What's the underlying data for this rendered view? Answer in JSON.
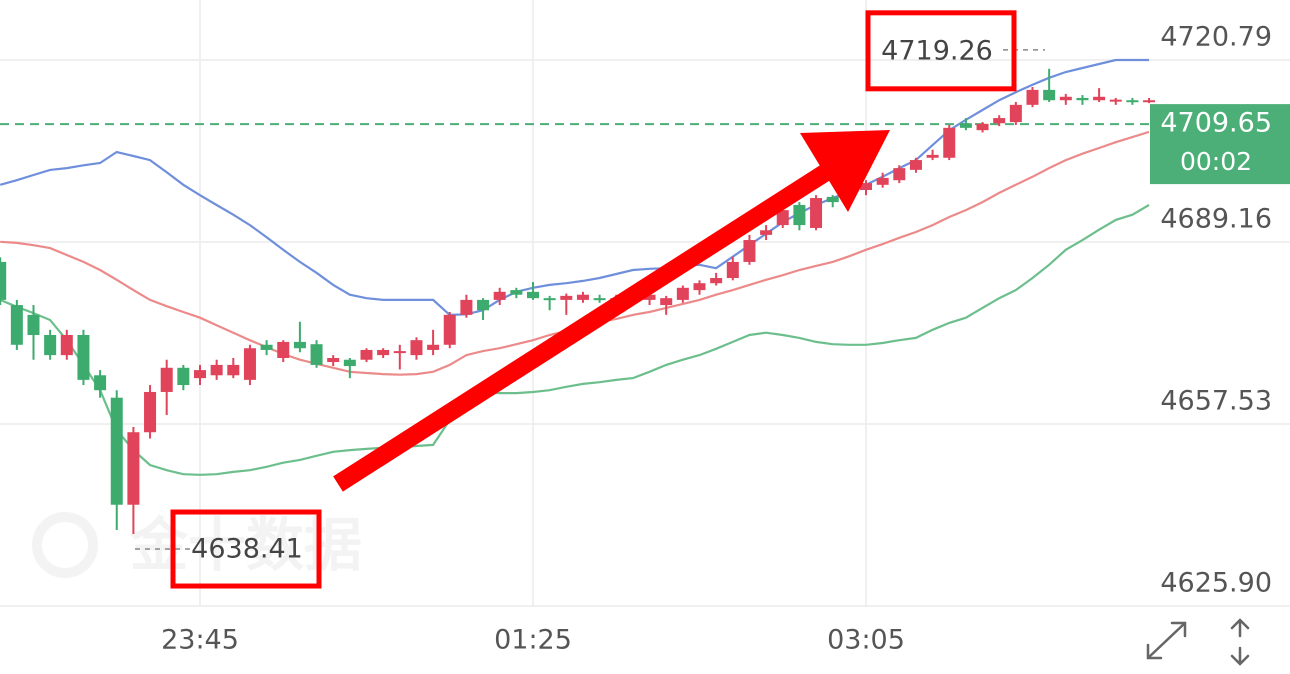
{
  "chart_data": {
    "type": "candlestick",
    "watermark": "金十数据",
    "categories": [
      null,
      null,
      null,
      null,
      null,
      null,
      null,
      null,
      null,
      null,
      null,
      null,
      "23:45",
      null,
      null,
      null,
      null,
      null,
      null,
      null,
      null,
      null,
      null,
      null,
      null,
      null,
      null,
      null,
      null,
      null,
      null,
      null,
      "01:25",
      null,
      null,
      null,
      null,
      null,
      null,
      null,
      null,
      null,
      null,
      null,
      null,
      null,
      null,
      null,
      null,
      null,
      null,
      null,
      "03:05",
      null,
      null,
      null,
      null,
      null,
      null,
      null,
      null,
      null,
      null,
      null,
      null,
      null,
      null,
      null,
      null,
      null
    ],
    "open": [
      4685.7,
      4678.2,
      4676.5,
      4673.0,
      4669.5,
      4673.0,
      4666.0,
      4662.1,
      4643.5,
      4656.1,
      4663.1,
      4667.3,
      4665.5,
      4666.0,
      4666.0,
      4665.2,
      4671.3,
      4669.0,
      4671.8,
      4671.4,
      4668.3,
      4668.7,
      4668.7,
      4669.5,
      4670.0,
      4669.5,
      4670.4,
      4671.3,
      4676.5,
      4679.1,
      4679.1,
      4680.8,
      4680.5,
      4679.4,
      4679.1,
      4679.1,
      4679.4,
      4679.1,
      4679.1,
      4679.1,
      4678.2,
      4679.1,
      4680.8,
      4682.0,
      4682.9,
      4685.7,
      4690.4,
      4692.1,
      4695.6,
      4691.6,
      4697.0,
      4697.3,
      4698.2,
      4699.1,
      4699.9,
      4701.7,
      4703.8,
      4703.8,
      4709.8,
      4708.6,
      4709.8,
      4710.0,
      4713.0,
      4715.6,
      4713.8,
      4714.2,
      4713.8,
      4713.8,
      4713.8,
      4713.5
    ],
    "high": [
      4686.5,
      4679.1,
      4678.2,
      4673.9,
      4673.9,
      4673.9,
      4666.9,
      4663.4,
      4657.0,
      4664.3,
      4668.7,
      4667.8,
      4667.8,
      4668.7,
      4669.0,
      4671.3,
      4672.1,
      4672.1,
      4675.3,
      4672.1,
      4669.5,
      4669.0,
      4670.7,
      4670.7,
      4671.3,
      4672.6,
      4673.9,
      4677.0,
      4680.0,
      4679.4,
      4681.2,
      4681.2,
      4682.2,
      4679.8,
      4680.2,
      4680.5,
      4680.0,
      4680.0,
      4680.5,
      4680.5,
      4679.8,
      4681.6,
      4682.5,
      4683.8,
      4686.6,
      4690.4,
      4692.1,
      4695.2,
      4696.1,
      4697.3,
      4697.3,
      4698.7,
      4699.9,
      4701.2,
      4702.5,
      4703.8,
      4705.2,
      4709.5,
      4710.7,
      4710.0,
      4711.2,
      4713.5,
      4716.1,
      4719.26,
      4714.9,
      4714.7,
      4715.9,
      4714.2,
      4714.2,
      4714.2
    ],
    "low": [
      4678.2,
      4670.4,
      4668.7,
      4668.7,
      4668.7,
      4664.3,
      4662.1,
      4639.1,
      4638.41,
      4655.0,
      4659.1,
      4663.4,
      4664.3,
      4665.2,
      4665.5,
      4664.3,
      4669.5,
      4668.3,
      4670.0,
      4667.3,
      4667.6,
      4665.5,
      4668.3,
      4669.0,
      4667.0,
      4668.7,
      4669.5,
      4670.7,
      4676.0,
      4675.6,
      4678.2,
      4679.4,
      4679.1,
      4677.3,
      4676.5,
      4678.6,
      4678.6,
      4678.2,
      4678.6,
      4678.2,
      4676.5,
      4678.6,
      4680.0,
      4681.6,
      4682.5,
      4685.2,
      4689.5,
      4691.6,
      4691.2,
      4691.2,
      4695.2,
      4696.8,
      4697.3,
      4698.6,
      4699.4,
      4701.2,
      4703.4,
      4703.4,
      4708.6,
      4708.2,
      4709.3,
      4709.5,
      4712.6,
      4713.5,
      4713.0,
      4713.0,
      4713.5,
      4713.0,
      4713.0,
      4713.3
    ],
    "close": [
      4679.1,
      4671.3,
      4673.0,
      4669.5,
      4673.0,
      4665.2,
      4663.4,
      4643.5,
      4656.1,
      4663.1,
      4667.3,
      4664.3,
      4666.9,
      4667.8,
      4667.8,
      4670.7,
      4670.4,
      4671.8,
      4670.7,
      4667.8,
      4669.0,
      4667.6,
      4670.4,
      4670.4,
      4670.2,
      4672.1,
      4671.3,
      4676.5,
      4679.1,
      4677.3,
      4680.5,
      4680.0,
      4679.4,
      4679.1,
      4679.8,
      4680.0,
      4679.1,
      4679.4,
      4679.8,
      4680.0,
      4679.4,
      4681.2,
      4682.0,
      4682.9,
      4685.7,
      4689.5,
      4691.2,
      4694.7,
      4692.1,
      4696.8,
      4696.1,
      4698.2,
      4699.4,
      4700.3,
      4702.0,
      4703.4,
      4704.3,
      4709.0,
      4709.0,
      4709.7,
      4710.7,
      4713.0,
      4715.6,
      4713.8,
      4714.4,
      4713.8,
      4714.4,
      4713.9,
      4713.5,
      4713.8
    ],
    "up_color": "#e0435a",
    "down_color": "#3dab6e",
    "bands": {
      "upper": {
        "color": "#6f8fdc",
        "values": [
          4699.1,
          4699.9,
          4700.8,
          4701.7,
          4702.0,
          4702.5,
          4702.9,
          4704.8,
          4704.1,
          4703.4,
          4701.3,
          4699.1,
          4697.3,
          4695.6,
          4693.9,
          4692.1,
          4690.0,
          4687.8,
          4685.7,
          4683.8,
          4681.7,
          4680.0,
          4679.4,
          4679.1,
          4679.1,
          4679.1,
          4679.1,
          4676.5,
          4676.6,
          4677.3,
          4679.1,
          4680.5,
          4681.2,
          4681.7,
          4682.0,
          4682.4,
          4682.9,
          4683.6,
          4684.3,
          4684.5,
          4684.6,
          4685.0,
          4685.2,
          4684.6,
          4686.6,
          4688.6,
          4690.6,
          4692.6,
          4694.2,
          4695.6,
          4696.8,
          4697.9,
          4699.1,
          4700.5,
          4702.0,
          4703.4,
          4706.0,
          4708.6,
          4710.4,
          4712.1,
          4713.8,
          4715.2,
          4716.5,
          4717.7,
          4718.7,
          4719.4,
          4720.1,
          4720.8,
          4720.8,
          4720.8
        ]
      },
      "middle": {
        "color": "#ec8a8a",
        "values": [
          4689.2,
          4689.0,
          4688.6,
          4688.1,
          4686.9,
          4685.7,
          4684.3,
          4682.6,
          4680.8,
          4679.1,
          4678.0,
          4677.0,
          4676.0,
          4674.7,
          4673.4,
          4672.1,
          4670.9,
          4669.7,
          4668.7,
          4668.0,
          4667.3,
          4666.6,
          4666.4,
          4666.2,
          4666.1,
          4666.2,
          4666.6,
          4667.8,
          4669.5,
          4670.2,
          4670.7,
          4671.4,
          4672.1,
          4673.0,
          4673.7,
          4674.4,
          4675.3,
          4675.8,
          4676.5,
          4677.0,
          4677.7,
          4678.4,
          4679.1,
          4680.0,
          4680.8,
          4681.7,
          4682.6,
          4683.4,
          4684.3,
          4685.0,
          4685.7,
          4686.7,
          4687.8,
          4688.8,
          4689.9,
          4690.9,
          4692.1,
          4693.5,
          4694.7,
          4696.1,
          4697.7,
          4699.1,
          4700.5,
          4702.0,
          4703.4,
          4704.5,
          4705.5,
          4706.5,
          4707.4,
          4708.3
        ]
      },
      "lower": {
        "color": "#6cbf8c",
        "values": [
          4679.1,
          4677.9,
          4676.8,
          4675.6,
          4672.1,
          4667.8,
          4663.4,
          4656.5,
          4653.0,
          4650.4,
          4649.5,
          4648.8,
          4648.7,
          4648.8,
          4649.2,
          4649.5,
          4650.1,
          4650.8,
          4651.3,
          4652.0,
          4652.7,
          4653.0,
          4653.2,
          4653.4,
          4653.5,
          4653.7,
          4653.9,
          4658.2,
          4660.8,
          4663.1,
          4662.9,
          4662.9,
          4663.1,
          4663.4,
          4664.0,
          4664.5,
          4664.8,
          4665.2,
          4665.5,
          4666.6,
          4667.8,
          4668.7,
          4669.5,
          4670.6,
          4671.8,
          4673.0,
          4673.4,
          4673.0,
          4672.5,
          4671.8,
          4671.4,
          4671.3,
          4671.3,
          4671.6,
          4672.1,
          4672.5,
          4673.9,
          4675.1,
          4676.0,
          4677.7,
          4679.4,
          4680.8,
          4682.9,
          4685.2,
          4687.8,
          4689.5,
          4691.3,
          4693.0,
          4693.9,
          4695.6
        ]
      }
    },
    "ylim": [
      4625.9,
      4731.22
    ],
    "yticks": [
      {
        "value": 4625.9,
        "label": "4625.90"
      },
      4657.53,
      4689.16,
      4720.79
    ],
    "grid": true,
    "current_price": 4709.65,
    "current_price_color": "#4caf78",
    "countdown": "00:02",
    "high_marker": 4719.26,
    "low_marker": 4638.41
  }
}
